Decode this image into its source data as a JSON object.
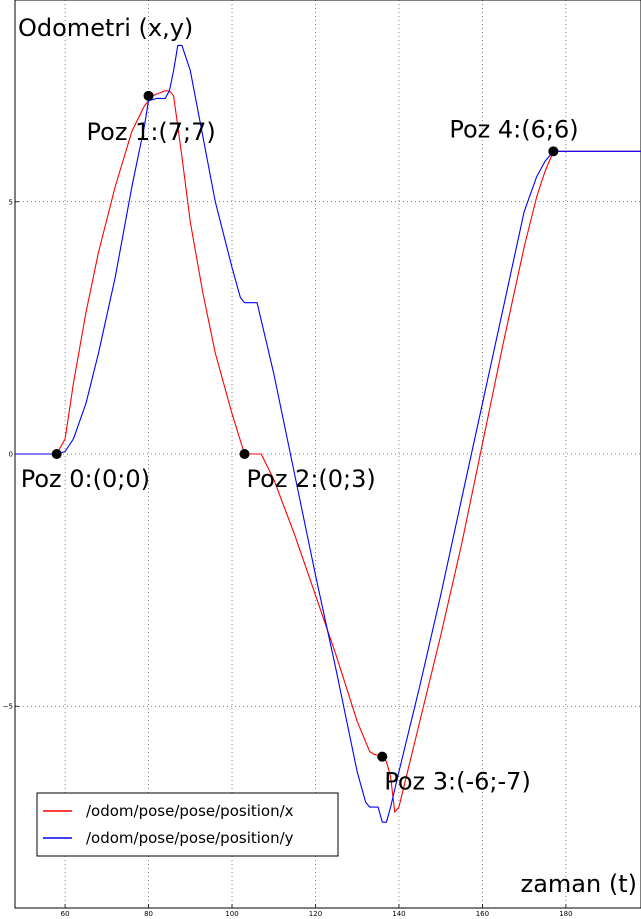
{
  "chart_data": {
    "type": "line",
    "title": "Odometri (x,y)",
    "xlabel": "zaman (t)",
    "ylabel": "",
    "xlim": [
      48,
      198
    ],
    "ylim": [
      -9,
      9
    ],
    "xticks": [
      60,
      80,
      100,
      120,
      140,
      160,
      180
    ],
    "xtick_labels": [
      "60",
      "80",
      "100",
      "120",
      "140",
      "160",
      "180"
    ],
    "yticks": [
      -5,
      0,
      5
    ],
    "ytick_labels": [
      "−5",
      "0",
      "5"
    ],
    "grid": true,
    "legend_position": "bottom-left",
    "series": [
      {
        "name": "/odom/pose/pose/position/x",
        "color": "#ff0000",
        "x": [
          48,
          58,
          60,
          62,
          65,
          68,
          72,
          76,
          79,
          81,
          84,
          85,
          86,
          88,
          90,
          93,
          96,
          100,
          103,
          104,
          105,
          107,
          110,
          115,
          120,
          125,
          130,
          133,
          134,
          136,
          137,
          138,
          139,
          140,
          145,
          150,
          155,
          160,
          165,
          170,
          173,
          175,
          177,
          180,
          198
        ],
        "y": [
          0,
          0,
          0.3,
          1.4,
          2.8,
          4.0,
          5.3,
          6.4,
          6.9,
          7.1,
          7.2,
          7.2,
          7.1,
          5.9,
          4.6,
          3.2,
          2.0,
          0.8,
          0.0,
          0.0,
          0.0,
          0.0,
          -0.5,
          -1.6,
          -2.8,
          -4.0,
          -5.3,
          -5.9,
          -5.95,
          -6.0,
          -6.1,
          -6.4,
          -7.1,
          -7.0,
          -5.3,
          -3.6,
          -1.8,
          0.2,
          2.2,
          4.1,
          5.1,
          5.6,
          6.0,
          6.0,
          6.0
        ]
      },
      {
        "name": "/odom/pose/pose/position/y",
        "color": "#0000ff",
        "x": [
          48,
          58,
          60,
          62,
          65,
          68,
          72,
          76,
          79,
          80,
          82,
          84,
          85,
          86,
          87,
          88,
          90,
          93,
          96,
          100,
          102,
          103,
          104,
          105,
          106,
          108,
          110,
          115,
          120,
          125,
          130,
          132,
          133,
          135,
          136,
          137,
          138,
          140,
          145,
          150,
          155,
          160,
          165,
          170,
          173,
          175,
          177,
          180,
          198
        ],
        "y": [
          0,
          0,
          0.05,
          0.3,
          1.0,
          2.0,
          3.5,
          5.3,
          6.5,
          7.0,
          7.05,
          7.05,
          7.2,
          7.6,
          8.1,
          8.1,
          7.6,
          6.3,
          5.0,
          3.7,
          3.1,
          3.0,
          3.0,
          3.0,
          3.0,
          2.3,
          1.6,
          -0.4,
          -2.4,
          -4.3,
          -6.3,
          -6.9,
          -7.0,
          -7.0,
          -7.3,
          -7.3,
          -7.0,
          -6.3,
          -4.6,
          -2.8,
          -0.9,
          1.0,
          2.9,
          4.8,
          5.5,
          5.8,
          6.0,
          6.0,
          6.0
        ]
      }
    ],
    "points": [
      {
        "label": "Poz 0:(0;0)",
        "x": 58,
        "y": 0,
        "anchor": "below-left"
      },
      {
        "label": "Poz 1:(7;7)",
        "x": 80,
        "y": 7.1,
        "anchor": "below-right"
      },
      {
        "label": "Poz 2:(0;3)",
        "x": 103,
        "y": 0,
        "anchor": "below-right"
      },
      {
        "label": "Poz 3:(-6;-7)",
        "x": 136,
        "y": -6,
        "anchor": "below-right"
      },
      {
        "label": "Poz 4:(6;6)",
        "x": 177,
        "y": 6,
        "anchor": "above-left"
      }
    ]
  }
}
